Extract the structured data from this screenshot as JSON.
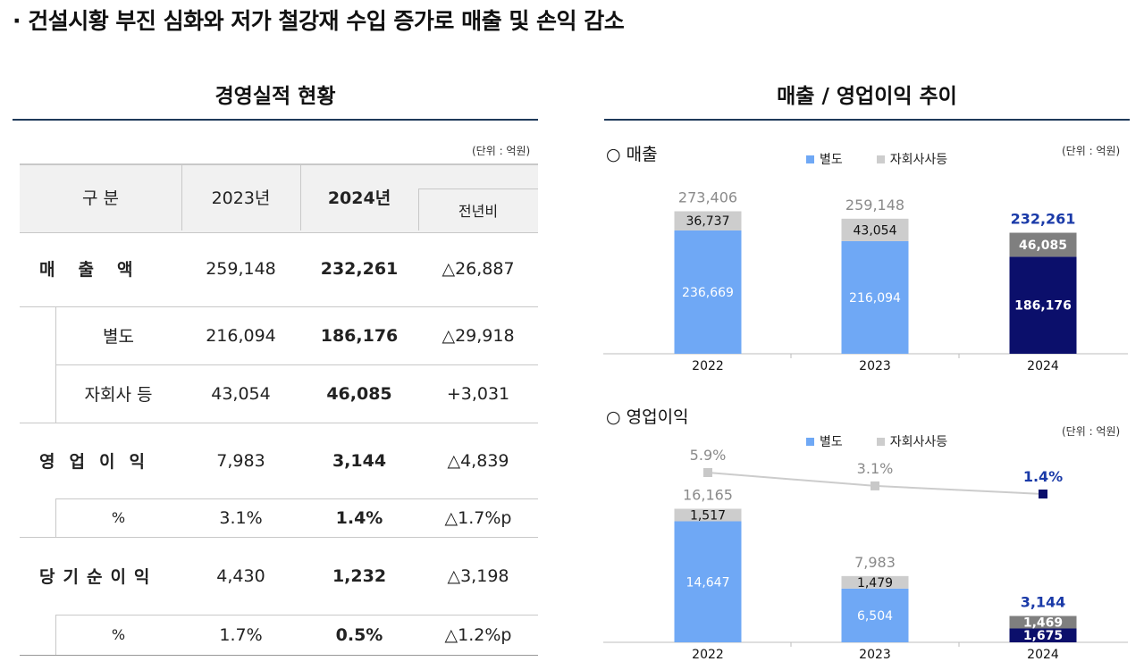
{
  "headline": "· 건설시황 부진 심화와 저가 철강재 수입 증가로 매출 및 손익 감소",
  "table_section": {
    "title": "경영실적 현황",
    "unit": "(단위 : 억원)",
    "headers": {
      "category": "구 분",
      "y2023": "2023년",
      "y2024": "2024년",
      "yoy": "전년비"
    },
    "rows": [
      {
        "label": "매출액",
        "v2023": "259,148",
        "v2024": "232,261",
        "yoy": "△26,887"
      },
      {
        "label": "별도",
        "v2023": "216,094",
        "v2024": "186,176",
        "yoy": "△29,918"
      },
      {
        "label": "자회사 등",
        "v2023": "43,054",
        "v2024": "46,085",
        "yoy": "+3,031"
      },
      {
        "label": "영업이익",
        "v2023": "7,983",
        "v2024": "3,144",
        "yoy": "△4,839"
      },
      {
        "label": "%",
        "v2023": "3.1%",
        "v2024": "1.4%",
        "yoy": "△1.7%p"
      },
      {
        "label": "당기순이익",
        "v2023": "4,430",
        "v2024": "1,232",
        "yoy": "△3,198"
      },
      {
        "label": "%",
        "v2023": "1.7%",
        "v2024": "0.5%",
        "yoy": "△1.2%p"
      }
    ]
  },
  "chart_section": {
    "title": "매출 / 영업이익 추이"
  },
  "legend": {
    "standalone": "별도",
    "subsidiary": "자회사사등"
  },
  "colors": {
    "standalone": "#6fa8f5",
    "subsidiary": "#cdcdcd",
    "highlight_standalone": "#0b0f6b",
    "highlight_subsidiary": "#7f7f7f",
    "highlight_text": "#1a3aa8",
    "line": "#cccccc"
  },
  "chart_data": [
    {
      "type": "bar",
      "title": "○ 매출",
      "unit": "(단위 : 억원)",
      "stacked": true,
      "categories": [
        "2022",
        "2023",
        "2024"
      ],
      "series": [
        {
          "name": "별도",
          "values": [
            236669,
            216094,
            186176
          ]
        },
        {
          "name": "자회사사등",
          "values": [
            36737,
            43054,
            46085
          ]
        }
      ],
      "totals": [
        273406,
        259148,
        232261
      ],
      "ylim": [
        0,
        300000
      ],
      "labels": {
        "standalone": [
          "236,669",
          "216,094",
          "186,176"
        ],
        "subsidiary": [
          "36,737",
          "43,054",
          "46,085"
        ],
        "totals": [
          "273,406",
          "259,148",
          "232,261"
        ]
      }
    },
    {
      "type": "bar",
      "title": "○ 영업이익",
      "unit": "(단위 : 억원)",
      "stacked": true,
      "categories": [
        "2022",
        "2023",
        "2024"
      ],
      "series": [
        {
          "name": "별도",
          "values": [
            14647,
            6504,
            1675
          ]
        },
        {
          "name": "자회사사등",
          "values": [
            1517,
            1479,
            1469
          ]
        }
      ],
      "totals": [
        16165,
        7983,
        3144
      ],
      "margin_pct": [
        5.9,
        3.1,
        1.4
      ],
      "ylim": [
        0,
        20000
      ],
      "labels": {
        "standalone": [
          "14,647",
          "6,504",
          "1,675"
        ],
        "subsidiary": [
          "1,517",
          "1,479",
          "1,469"
        ],
        "totals": [
          "16,165",
          "7,983",
          "3,144"
        ],
        "margin": [
          "5.9%",
          "3.1%",
          "1.4%"
        ]
      }
    }
  ]
}
